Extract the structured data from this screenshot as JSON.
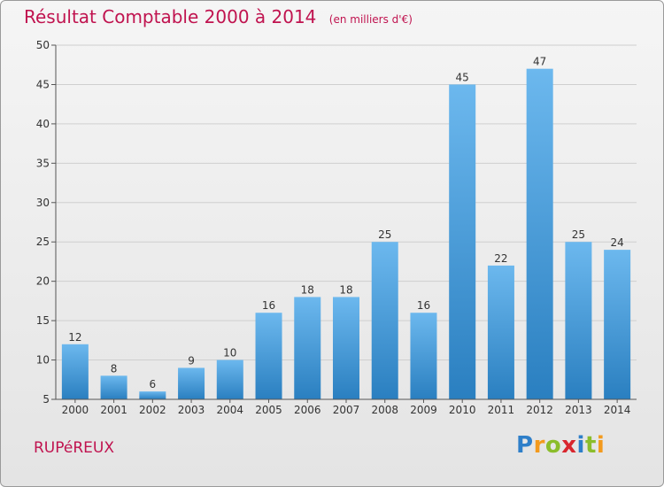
{
  "header": {
    "title": "Résultat Comptable 2000 à 2014",
    "subtitle": "(en milliers d'€)"
  },
  "footer": {
    "commune": "RUPéREUX",
    "logo_text": "Proxiti"
  },
  "colors": {
    "title": "#c0134f",
    "bar_top": "#6cb8ee",
    "bar_bottom": "#2a7fc0"
  },
  "chart_data": {
    "type": "bar",
    "title": "Résultat Comptable 2000 à 2014",
    "subtitle": "(en milliers d'€)",
    "categories": [
      "2000",
      "2001",
      "2002",
      "2003",
      "2004",
      "2005",
      "2006",
      "2007",
      "2008",
      "2009",
      "2010",
      "2011",
      "2012",
      "2013",
      "2014"
    ],
    "values": [
      12,
      8,
      6,
      9,
      10,
      16,
      18,
      18,
      25,
      16,
      45,
      22,
      47,
      25,
      24
    ],
    "ylim": [
      5,
      50
    ],
    "yticks": [
      5,
      10,
      15,
      20,
      25,
      30,
      35,
      40,
      45,
      50
    ],
    "grid": true,
    "data_labels": true
  }
}
